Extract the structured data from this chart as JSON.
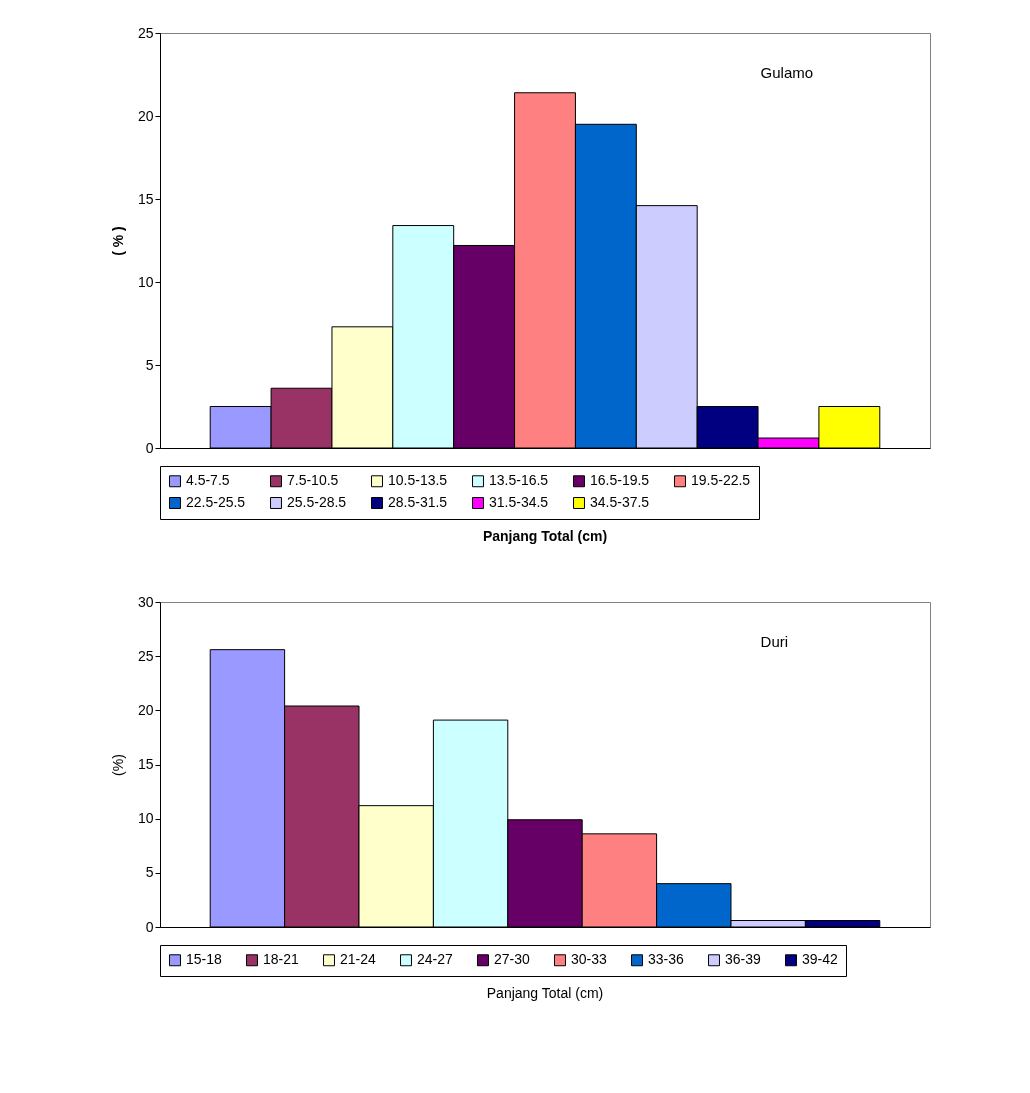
{
  "chart_data": [
    {
      "type": "bar",
      "annotations": [
        "Gulamo"
      ],
      "xlabel": "Panjang Total (cm)",
      "ylabel": "( % )",
      "categories": [
        null
      ],
      "series": [
        {
          "name": "4.5-7.5",
          "color": "#9999ff",
          "values": [
            2.5
          ]
        },
        {
          "name": "7.5-10.5",
          "color": "#993366",
          "values": [
            3.6
          ]
        },
        {
          "name": "10.5-13.5",
          "color": "#ffffcc",
          "values": [
            7.3
          ]
        },
        {
          "name": "13.5-16.5",
          "color": "#ccffff",
          "values": [
            13.4
          ]
        },
        {
          "name": "16.5-19.5",
          "color": "#660066",
          "values": [
            12.2
          ]
        },
        {
          "name": "19.5-22.5",
          "color": "#ff8080",
          "values": [
            21.4
          ]
        },
        {
          "name": "22.5-25.5",
          "color": "#0066cc",
          "values": [
            19.5
          ]
        },
        {
          "name": "25.5-28.5",
          "color": "#ccccff",
          "values": [
            14.6
          ]
        },
        {
          "name": "28.5-31.5",
          "color": "#000080",
          "values": [
            2.5
          ]
        },
        {
          "name": "31.5-34.5",
          "color": "#ff00ff",
          "values": [
            0.6
          ]
        },
        {
          "name": "34.5-37.5",
          "color": "#ffff00",
          "values": [
            2.5
          ]
        }
      ],
      "ylim": [
        0,
        25
      ],
      "yticks": [
        0,
        5,
        10,
        15,
        20,
        25
      ],
      "legend": "bottom",
      "tick_labels": "y"
    },
    {
      "type": "bar",
      "annotations": [
        "Duri"
      ],
      "xlabel": "Panjang Total (cm)",
      "ylabel": "(%)",
      "categories": [
        null
      ],
      "series": [
        {
          "name": "15-18",
          "color": "#9999ff",
          "values": [
            25.6
          ]
        },
        {
          "name": "18-21",
          "color": "#993366",
          "values": [
            20.4
          ]
        },
        {
          "name": "21-24",
          "color": "#ffffcc",
          "values": [
            11.2
          ]
        },
        {
          "name": "24-27",
          "color": "#ccffff",
          "values": [
            19.1
          ]
        },
        {
          "name": "27-30",
          "color": "#660066",
          "values": [
            9.9
          ]
        },
        {
          "name": "30-33",
          "color": "#ff8080",
          "values": [
            8.6
          ]
        },
        {
          "name": "33-36",
          "color": "#0066cc",
          "values": [
            4.0
          ]
        },
        {
          "name": "36-39",
          "color": "#ccccff",
          "values": [
            0.6
          ]
        },
        {
          "name": "39-42",
          "color": "#000080",
          "values": [
            0.6
          ]
        }
      ],
      "ylim": [
        0,
        30
      ],
      "yticks": [
        0,
        5,
        10,
        15,
        20,
        25,
        30
      ],
      "legend": "bottom",
      "tick_labels": "y"
    }
  ]
}
